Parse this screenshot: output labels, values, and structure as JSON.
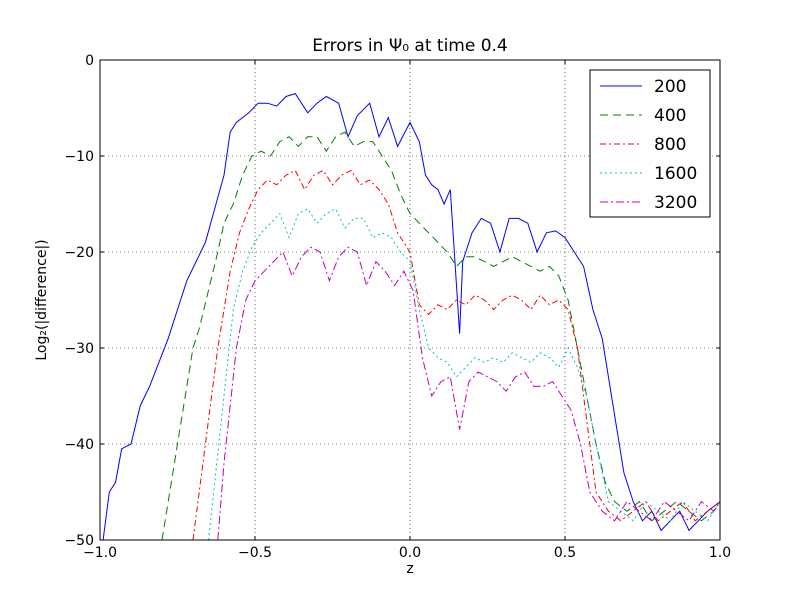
{
  "chart_data": {
    "type": "line",
    "title": "Errors in Ψ₀ at time 0.4",
    "xlabel": "z",
    "ylabel": "Log₂(|difference|)",
    "xlim": [
      -1.0,
      1.0
    ],
    "ylim": [
      -50,
      0
    ],
    "grid": true,
    "xticks": [
      -1.0,
      -0.5,
      0.0,
      0.5,
      1.0
    ],
    "xtick_labels": [
      "−1.0",
      "−0.5",
      "0.0",
      "0.5",
      "1.0"
    ],
    "yticks": [
      0,
      -10,
      -20,
      -30,
      -40,
      -50
    ],
    "ytick_labels": [
      "0",
      "−10",
      "−20",
      "−30",
      "−40",
      "−50"
    ],
    "legend": {
      "placement": "top-right"
    },
    "series": [
      {
        "name": "200",
        "color": "#0000ff",
        "dash": "solid",
        "x": [
          -0.99,
          -0.97,
          -0.95,
          -0.93,
          -0.9,
          -0.87,
          -0.84,
          -0.81,
          -0.78,
          -0.75,
          -0.72,
          -0.69,
          -0.66,
          -0.63,
          -0.6,
          -0.58,
          -0.56,
          -0.52,
          -0.49,
          -0.46,
          -0.43,
          -0.4,
          -0.37,
          -0.33,
          -0.3,
          -0.27,
          -0.23,
          -0.2,
          -0.17,
          -0.13,
          -0.1,
          -0.07,
          -0.04,
          0.0,
          0.03,
          0.05,
          0.07,
          0.09,
          0.11,
          0.13,
          0.16,
          0.17,
          0.18,
          0.2,
          0.23,
          0.26,
          0.29,
          0.32,
          0.35,
          0.38,
          0.41,
          0.44,
          0.47,
          0.5,
          0.53,
          0.56,
          0.59,
          0.62,
          0.64,
          0.66,
          0.69,
          0.72,
          0.75,
          0.78,
          0.81,
          0.84,
          0.87,
          0.9,
          0.93,
          0.96,
          1.0
        ],
        "y": [
          -50,
          -45,
          -44,
          -40.5,
          -40,
          -36,
          -34,
          -31.5,
          -29,
          -26,
          -23,
          -21,
          -19,
          -15.5,
          -12,
          -7.5,
          -6.5,
          -5.5,
          -4.5,
          -4.5,
          -4.8,
          -3.8,
          -3.5,
          -5.5,
          -4.5,
          -3.8,
          -4.5,
          -8,
          -5.8,
          -4.5,
          -8,
          -6,
          -9,
          -6.5,
          -8.5,
          -12,
          -13,
          -13.5,
          -15,
          -13.5,
          -28.5,
          -21,
          -20,
          -18,
          -16.5,
          -17,
          -20,
          -16.5,
          -16.5,
          -17,
          -20,
          -18,
          -17.8,
          -18.5,
          -20,
          -21.5,
          -26,
          -29,
          -33,
          -37,
          -43,
          -46,
          -48,
          -47,
          -49,
          -48,
          -47,
          -49,
          -48,
          -47,
          -46
        ]
      },
      {
        "name": "400",
        "color": "#008000",
        "dash": "8 5",
        "x": [
          -0.8,
          -0.78,
          -0.76,
          -0.74,
          -0.72,
          -0.7,
          -0.68,
          -0.65,
          -0.62,
          -0.6,
          -0.57,
          -0.54,
          -0.51,
          -0.48,
          -0.45,
          -0.42,
          -0.39,
          -0.36,
          -0.33,
          -0.3,
          -0.27,
          -0.24,
          -0.21,
          -0.18,
          -0.15,
          -0.12,
          -0.09,
          -0.06,
          -0.03,
          0.0,
          0.03,
          0.06,
          0.09,
          0.12,
          0.15,
          0.18,
          0.21,
          0.24,
          0.27,
          0.3,
          0.33,
          0.36,
          0.39,
          0.42,
          0.45,
          0.48,
          0.51,
          0.54,
          0.57,
          0.6,
          0.63,
          0.66,
          0.7,
          0.74,
          0.78,
          0.82,
          0.86,
          0.9,
          0.94,
          0.98,
          1.0
        ],
        "y": [
          -50,
          -46,
          -42,
          -38,
          -34,
          -30,
          -28,
          -24,
          -20,
          -17,
          -15,
          -12,
          -10,
          -9.5,
          -10,
          -8.5,
          -8,
          -9,
          -8,
          -8,
          -9.5,
          -8,
          -7.5,
          -9,
          -8.5,
          -8.5,
          -10,
          -11.5,
          -14,
          -16,
          -17,
          -18,
          -19,
          -20,
          -21.5,
          -20.5,
          -20.5,
          -21,
          -21.5,
          -21,
          -20.5,
          -21,
          -21.5,
          -22,
          -21.5,
          -22.5,
          -25,
          -30,
          -35,
          -40,
          -44,
          -46,
          -47,
          -46,
          -48,
          -47,
          -46,
          -47,
          -48,
          -47,
          -46
        ]
      },
      {
        "name": "800",
        "color": "#ff0000",
        "dash": "6 3 2 3",
        "x": [
          -0.7,
          -0.68,
          -0.66,
          -0.64,
          -0.62,
          -0.6,
          -0.58,
          -0.55,
          -0.52,
          -0.49,
          -0.46,
          -0.43,
          -0.4,
          -0.37,
          -0.34,
          -0.31,
          -0.28,
          -0.25,
          -0.22,
          -0.19,
          -0.16,
          -0.13,
          -0.1,
          -0.07,
          -0.04,
          0.0,
          0.03,
          0.06,
          0.09,
          0.12,
          0.15,
          0.18,
          0.21,
          0.24,
          0.27,
          0.3,
          0.33,
          0.36,
          0.39,
          0.42,
          0.45,
          0.48,
          0.51,
          0.54,
          0.56,
          0.58,
          0.6,
          0.64,
          0.68,
          0.72,
          0.76,
          0.8,
          0.84,
          0.88,
          0.92,
          0.96,
          1.0
        ],
        "y": [
          -50,
          -45,
          -40,
          -35,
          -30,
          -26,
          -22,
          -18,
          -15.5,
          -13.5,
          -12.5,
          -13,
          -12,
          -11.5,
          -13.5,
          -12,
          -11.5,
          -13,
          -12,
          -11.5,
          -13,
          -12.5,
          -13.5,
          -15,
          -18,
          -20,
          -25.5,
          -26.5,
          -25.5,
          -26,
          -25,
          -25.5,
          -24.5,
          -25,
          -26,
          -25,
          -24.5,
          -25,
          -26,
          -24.5,
          -25.5,
          -25,
          -26,
          -30,
          -35,
          -40,
          -45,
          -47,
          -48,
          -47,
          -46,
          -48,
          -47,
          -46,
          -48,
          -47,
          -46
        ]
      },
      {
        "name": "1600",
        "color": "#00bfbf",
        "dash": "2 3",
        "x": [
          -0.65,
          -0.63,
          -0.61,
          -0.59,
          -0.57,
          -0.54,
          -0.51,
          -0.48,
          -0.45,
          -0.42,
          -0.39,
          -0.36,
          -0.33,
          -0.3,
          -0.27,
          -0.24,
          -0.21,
          -0.18,
          -0.15,
          -0.12,
          -0.09,
          -0.06,
          -0.03,
          0.0,
          0.03,
          0.06,
          0.09,
          0.12,
          0.15,
          0.18,
          0.21,
          0.24,
          0.27,
          0.3,
          0.33,
          0.36,
          0.39,
          0.42,
          0.45,
          0.48,
          0.51,
          0.54,
          0.57,
          0.6,
          0.64,
          0.68,
          0.72,
          0.76,
          0.8,
          0.84,
          0.88,
          0.92,
          0.96,
          1.0
        ],
        "y": [
          -50,
          -44,
          -38,
          -32,
          -26,
          -22,
          -19.5,
          -18,
          -17,
          -16,
          -18.5,
          -16,
          -15.5,
          -17,
          -16,
          -15.5,
          -17.5,
          -16.5,
          -16.5,
          -18.5,
          -18,
          -18.5,
          -20,
          -21,
          -26,
          -30,
          -31,
          -31.5,
          -33,
          -32,
          -31,
          -31.5,
          -31,
          -31.5,
          -30.5,
          -31,
          -31.5,
          -30.5,
          -31,
          -32,
          -30,
          -32,
          -35,
          -40,
          -46,
          -47,
          -48,
          -46,
          -47,
          -48,
          -46,
          -47,
          -48,
          -46
        ]
      },
      {
        "name": "3200",
        "color": "#bf00bf",
        "dash": "8 3 2 3",
        "x": [
          -0.62,
          -0.6,
          -0.58,
          -0.56,
          -0.53,
          -0.5,
          -0.47,
          -0.44,
          -0.41,
          -0.38,
          -0.35,
          -0.32,
          -0.29,
          -0.26,
          -0.23,
          -0.2,
          -0.17,
          -0.14,
          -0.11,
          -0.08,
          -0.05,
          -0.02,
          0.01,
          0.04,
          0.07,
          0.1,
          0.13,
          0.16,
          0.19,
          0.22,
          0.25,
          0.28,
          0.31,
          0.34,
          0.37,
          0.4,
          0.43,
          0.46,
          0.49,
          0.52,
          0.55,
          0.58,
          0.62,
          0.66,
          0.7,
          0.74,
          0.78,
          0.82,
          0.86,
          0.9,
          0.94,
          0.98,
          1.0
        ],
        "y": [
          -50,
          -42,
          -36,
          -30,
          -25,
          -23,
          -22,
          -21,
          -20,
          -22.5,
          -20.5,
          -19.5,
          -20,
          -23,
          -20.5,
          -19.5,
          -20,
          -23.5,
          -21,
          -22,
          -23.5,
          -22,
          -24,
          -31,
          -35,
          -33.5,
          -33,
          -38.5,
          -33.5,
          -32.5,
          -33,
          -33.5,
          -34.5,
          -33,
          -32.5,
          -34,
          -34,
          -33.5,
          -35,
          -36.5,
          -40,
          -45,
          -47,
          -48,
          -46,
          -47,
          -48,
          -46,
          -47,
          -48,
          -46,
          -47,
          -46
        ]
      }
    ]
  }
}
